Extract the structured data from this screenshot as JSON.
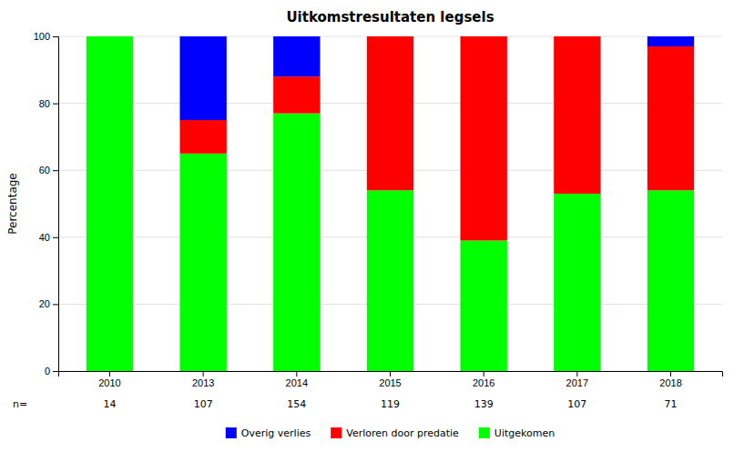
{
  "chart_data": {
    "type": "bar",
    "stacked": true,
    "title": "Uitkomstresultaten legsels",
    "y_label": "Percentage",
    "categories": [
      "2010",
      "2013",
      "2014",
      "2015",
      "2016",
      "2017",
      "2018"
    ],
    "series": [
      {
        "name": "Uitgekomen",
        "color": "#00ff00",
        "values": [
          100,
          65,
          77,
          54,
          39,
          53,
          54
        ]
      },
      {
        "name": "Verloren door predatie",
        "color": "#ff0000",
        "values": [
          0,
          10,
          11,
          46,
          61,
          47,
          43
        ]
      },
      {
        "name": "Overig verlies",
        "color": "#0000ff",
        "values": [
          0,
          25,
          12,
          0,
          0,
          0,
          3
        ]
      }
    ],
    "n_label": "n=",
    "n_values": [
      14,
      107,
      154,
      119,
      139,
      107,
      71
    ],
    "ylim": [
      0,
      100
    ],
    "yticks": [
      0,
      20,
      40,
      60,
      80,
      100
    ],
    "grid": true,
    "legend": "bottom"
  }
}
